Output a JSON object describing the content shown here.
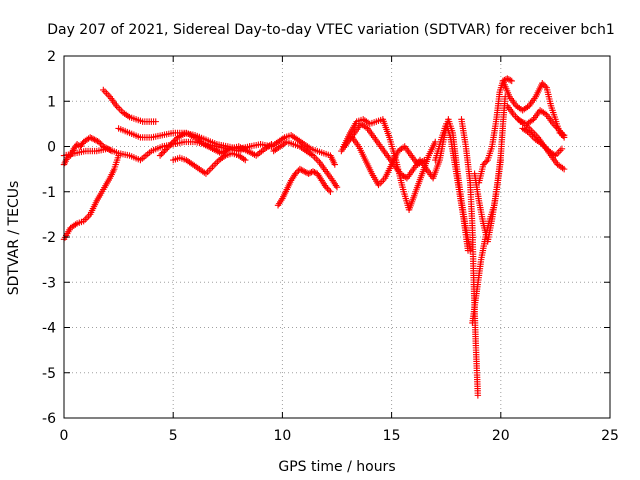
{
  "chart_data": {
    "type": "scatter",
    "title": "Day 207 of 2021, Sidereal Day-to-day VTEC variation (SDTVAR) for receiver bch1",
    "xlabel": "GPS time / hours",
    "ylabel": "SDTVAR / TECUs",
    "xlim": [
      0,
      25
    ],
    "ylim": [
      -6,
      2
    ],
    "xticks": [
      0,
      5,
      10,
      15,
      20,
      25
    ],
    "yticks": [
      -6,
      -5,
      -4,
      -3,
      -2,
      -1,
      0,
      1,
      2
    ],
    "grid": true,
    "marker": "+",
    "color": "#ff0000",
    "series": [
      {
        "name": "a",
        "points": [
          [
            0.0,
            -2.05
          ],
          [
            0.3,
            -1.8
          ],
          [
            0.6,
            -1.7
          ],
          [
            0.9,
            -1.65
          ],
          [
            1.2,
            -1.5
          ],
          [
            1.5,
            -1.2
          ],
          [
            1.8,
            -0.95
          ],
          [
            2.1,
            -0.7
          ],
          [
            2.3,
            -0.5
          ],
          [
            2.5,
            -0.2
          ]
        ]
      },
      {
        "name": "b",
        "points": [
          [
            0.0,
            -0.4
          ],
          [
            0.15,
            -0.25
          ],
          [
            0.3,
            -0.2
          ],
          [
            0.45,
            -0.05
          ],
          [
            0.6,
            0.05
          ],
          [
            0.75,
            0.0
          ],
          [
            0.9,
            0.1
          ],
          [
            1.05,
            0.15
          ],
          [
            1.2,
            0.2
          ],
          [
            1.4,
            0.15
          ],
          [
            1.6,
            0.1
          ],
          [
            1.8,
            0.0
          ],
          [
            2.0,
            -0.05
          ],
          [
            2.2,
            -0.1
          ]
        ]
      },
      {
        "name": "c",
        "points": [
          [
            0.0,
            -0.2
          ],
          [
            0.5,
            -0.15
          ],
          [
            1.0,
            -0.1
          ],
          [
            1.5,
            -0.1
          ],
          [
            2.0,
            -0.05
          ],
          [
            2.5,
            -0.15
          ],
          [
            3.0,
            -0.2
          ],
          [
            3.5,
            -0.3
          ],
          [
            4.0,
            -0.1
          ],
          [
            4.5,
            0.0
          ],
          [
            5.0,
            0.05
          ],
          [
            5.5,
            0.1
          ],
          [
            6.0,
            0.1
          ],
          [
            6.5,
            0.05
          ],
          [
            7.0,
            0.0
          ],
          [
            7.5,
            -0.05
          ],
          [
            8.0,
            -0.1
          ],
          [
            8.5,
            0.0
          ],
          [
            9.0,
            0.05
          ],
          [
            9.5,
            0.0
          ]
        ]
      },
      {
        "name": "d",
        "points": [
          [
            1.8,
            1.25
          ],
          [
            2.1,
            1.1
          ],
          [
            2.4,
            0.9
          ],
          [
            2.7,
            0.75
          ],
          [
            3.0,
            0.65
          ],
          [
            3.3,
            0.6
          ],
          [
            3.6,
            0.55
          ],
          [
            3.9,
            0.55
          ],
          [
            4.2,
            0.55
          ]
        ]
      },
      {
        "name": "e",
        "points": [
          [
            2.5,
            0.4
          ],
          [
            3.0,
            0.3
          ],
          [
            3.5,
            0.2
          ],
          [
            4.0,
            0.2
          ],
          [
            4.5,
            0.25
          ],
          [
            5.0,
            0.3
          ],
          [
            5.5,
            0.3
          ],
          [
            6.0,
            0.25
          ],
          [
            6.5,
            0.15
          ],
          [
            7.0,
            0.05
          ],
          [
            7.5,
            0.0
          ],
          [
            8.0,
            -0.05
          ],
          [
            8.5,
            0.0
          ]
        ]
      },
      {
        "name": "f",
        "points": [
          [
            5.0,
            -0.3
          ],
          [
            5.3,
            -0.25
          ],
          [
            5.6,
            -0.3
          ],
          [
            5.9,
            -0.4
          ],
          [
            6.2,
            -0.5
          ],
          [
            6.5,
            -0.6
          ],
          [
            6.8,
            -0.45
          ],
          [
            7.1,
            -0.3
          ],
          [
            7.4,
            -0.2
          ],
          [
            7.7,
            -0.15
          ],
          [
            8.0,
            -0.2
          ],
          [
            8.3,
            -0.3
          ]
        ]
      },
      {
        "name": "g",
        "points": [
          [
            4.4,
            -0.2
          ],
          [
            4.8,
            0.0
          ],
          [
            5.2,
            0.2
          ],
          [
            5.6,
            0.3
          ],
          [
            6.0,
            0.2
          ],
          [
            6.4,
            0.05
          ],
          [
            6.8,
            -0.05
          ],
          [
            7.2,
            -0.15
          ],
          [
            7.6,
            -0.05
          ],
          [
            8.0,
            0.0
          ],
          [
            8.4,
            -0.1
          ],
          [
            8.8,
            -0.2
          ],
          [
            9.2,
            -0.05
          ],
          [
            9.5,
            0.05
          ]
        ]
      },
      {
        "name": "h",
        "points": [
          [
            9.5,
            0.0
          ],
          [
            9.8,
            0.1
          ],
          [
            10.1,
            0.2
          ],
          [
            10.4,
            0.25
          ],
          [
            10.7,
            0.15
          ],
          [
            11.0,
            0.05
          ],
          [
            11.3,
            -0.05
          ],
          [
            11.6,
            -0.1
          ],
          [
            11.9,
            -0.15
          ],
          [
            12.2,
            -0.2
          ],
          [
            12.4,
            -0.4
          ]
        ]
      },
      {
        "name": "i",
        "points": [
          [
            9.6,
            -0.1
          ],
          [
            9.9,
            0.0
          ],
          [
            10.2,
            0.1
          ],
          [
            10.5,
            0.05
          ],
          [
            10.8,
            0.0
          ],
          [
            11.1,
            -0.1
          ],
          [
            11.4,
            -0.2
          ],
          [
            11.7,
            -0.35
          ],
          [
            12.0,
            -0.55
          ],
          [
            12.3,
            -0.75
          ],
          [
            12.5,
            -0.9
          ]
        ]
      },
      {
        "name": "j",
        "points": [
          [
            9.8,
            -1.3
          ],
          [
            10.0,
            -1.15
          ],
          [
            10.2,
            -0.95
          ],
          [
            10.4,
            -0.75
          ],
          [
            10.6,
            -0.6
          ],
          [
            10.8,
            -0.5
          ],
          [
            11.0,
            -0.55
          ],
          [
            11.2,
            -0.6
          ],
          [
            11.4,
            -0.55
          ],
          [
            11.6,
            -0.6
          ],
          [
            11.8,
            -0.75
          ],
          [
            12.0,
            -0.9
          ],
          [
            12.2,
            -1.0
          ]
        ]
      },
      {
        "name": "k",
        "points": [
          [
            12.7,
            -0.1
          ],
          [
            13.0,
            0.1
          ],
          [
            13.3,
            0.3
          ],
          [
            13.6,
            0.5
          ],
          [
            13.9,
            0.4
          ],
          [
            14.2,
            0.2
          ],
          [
            14.5,
            0.0
          ],
          [
            14.8,
            -0.2
          ],
          [
            15.1,
            -0.4
          ],
          [
            15.4,
            -0.6
          ],
          [
            15.7,
            -0.7
          ],
          [
            16.0,
            -0.5
          ],
          [
            16.3,
            -0.3
          ],
          [
            16.6,
            -0.5
          ],
          [
            16.9,
            -0.7
          ],
          [
            17.2,
            -0.3
          ],
          [
            17.4,
            0.2
          ],
          [
            17.6,
            0.6
          ],
          [
            17.8,
            0.3
          ],
          [
            18.0,
            -0.5
          ],
          [
            18.2,
            -1.2
          ],
          [
            18.4,
            -1.8
          ],
          [
            18.6,
            -2.3
          ]
        ]
      },
      {
        "name": "l",
        "points": [
          [
            12.8,
            0.0
          ],
          [
            13.1,
            0.3
          ],
          [
            13.4,
            0.55
          ],
          [
            13.7,
            0.6
          ],
          [
            14.0,
            0.5
          ],
          [
            14.3,
            0.55
          ],
          [
            14.6,
            0.6
          ],
          [
            14.9,
            0.2
          ],
          [
            15.2,
            -0.3
          ],
          [
            15.5,
            -0.9
          ],
          [
            15.8,
            -1.4
          ],
          [
            16.1,
            -1.0
          ],
          [
            16.4,
            -0.6
          ],
          [
            16.7,
            -0.2
          ],
          [
            17.0,
            0.1
          ]
        ]
      },
      {
        "name": "m",
        "points": [
          [
            13.2,
            0.2
          ],
          [
            13.5,
            0.0
          ],
          [
            13.8,
            -0.3
          ],
          [
            14.1,
            -0.6
          ],
          [
            14.4,
            -0.85
          ],
          [
            14.7,
            -0.7
          ],
          [
            15.0,
            -0.4
          ],
          [
            15.3,
            -0.1
          ],
          [
            15.6,
            0.0
          ],
          [
            15.9,
            -0.2
          ],
          [
            16.2,
            -0.4
          ],
          [
            16.5,
            -0.3
          ]
        ]
      },
      {
        "name": "n",
        "points": [
          [
            17.0,
            -0.3
          ],
          [
            17.3,
            0.2
          ],
          [
            17.5,
            0.5
          ],
          [
            17.7,
            0.2
          ],
          [
            17.9,
            -0.4
          ],
          [
            18.1,
            -1.0
          ],
          [
            18.3,
            -1.6
          ],
          [
            18.5,
            -2.3
          ]
        ]
      },
      {
        "name": "o",
        "points": [
          [
            18.2,
            0.6
          ],
          [
            18.4,
            0.0
          ],
          [
            18.6,
            -0.8
          ],
          [
            18.7,
            -1.8
          ],
          [
            18.75,
            -2.8
          ],
          [
            18.8,
            -3.6
          ],
          [
            18.85,
            -4.3
          ],
          [
            18.9,
            -4.9
          ],
          [
            18.95,
            -5.5
          ]
        ]
      },
      {
        "name": "p",
        "points": [
          [
            18.7,
            -3.9
          ],
          [
            18.9,
            -3.2
          ],
          [
            19.1,
            -2.5
          ],
          [
            19.3,
            -2.0
          ],
          [
            19.5,
            -1.6
          ],
          [
            19.7,
            -1.3
          ],
          [
            19.85,
            -0.8
          ],
          [
            20.0,
            -0.2
          ],
          [
            20.1,
            0.5
          ],
          [
            20.2,
            1.1
          ]
        ]
      },
      {
        "name": "q",
        "points": [
          [
            19.0,
            -0.8
          ],
          [
            19.2,
            -0.4
          ],
          [
            19.4,
            -0.3
          ],
          [
            19.6,
            0.0
          ],
          [
            19.8,
            0.6
          ],
          [
            19.95,
            1.2
          ],
          [
            20.1,
            1.45
          ],
          [
            20.3,
            1.5
          ],
          [
            20.5,
            1.45
          ]
        ]
      },
      {
        "name": "r",
        "points": [
          [
            18.8,
            -0.6
          ],
          [
            19.0,
            -1.2
          ],
          [
            19.2,
            -1.7
          ],
          [
            19.4,
            -2.1
          ],
          [
            19.6,
            -1.6
          ],
          [
            19.8,
            -1.0
          ],
          [
            20.0,
            -0.3
          ]
        ]
      },
      {
        "name": "s",
        "points": [
          [
            20.1,
            1.45
          ],
          [
            20.4,
            1.1
          ],
          [
            20.7,
            0.9
          ],
          [
            21.0,
            0.8
          ],
          [
            21.3,
            0.9
          ],
          [
            21.6,
            1.1
          ],
          [
            21.9,
            1.4
          ],
          [
            22.1,
            1.3
          ],
          [
            22.3,
            0.9
          ],
          [
            22.5,
            0.6
          ],
          [
            22.7,
            0.3
          ],
          [
            22.9,
            0.25
          ]
        ]
      },
      {
        "name": "t",
        "points": [
          [
            20.3,
            0.9
          ],
          [
            20.6,
            0.7
          ],
          [
            20.9,
            0.55
          ],
          [
            21.2,
            0.5
          ],
          [
            21.5,
            0.6
          ],
          [
            21.8,
            0.8
          ],
          [
            22.1,
            0.7
          ],
          [
            22.4,
            0.5
          ],
          [
            22.7,
            0.35
          ],
          [
            22.9,
            0.2
          ]
        ]
      },
      {
        "name": "u",
        "points": [
          [
            20.8,
            0.6
          ],
          [
            21.1,
            0.5
          ],
          [
            21.4,
            0.35
          ],
          [
            21.7,
            0.2
          ],
          [
            22.0,
            0.0
          ],
          [
            22.3,
            -0.2
          ],
          [
            22.6,
            -0.4
          ],
          [
            22.9,
            -0.5
          ]
        ]
      },
      {
        "name": "v",
        "points": [
          [
            21.0,
            0.4
          ],
          [
            21.3,
            0.3
          ],
          [
            21.6,
            0.15
          ],
          [
            21.9,
            0.05
          ],
          [
            22.2,
            -0.1
          ],
          [
            22.5,
            -0.2
          ],
          [
            22.8,
            -0.05
          ]
        ]
      }
    ]
  }
}
